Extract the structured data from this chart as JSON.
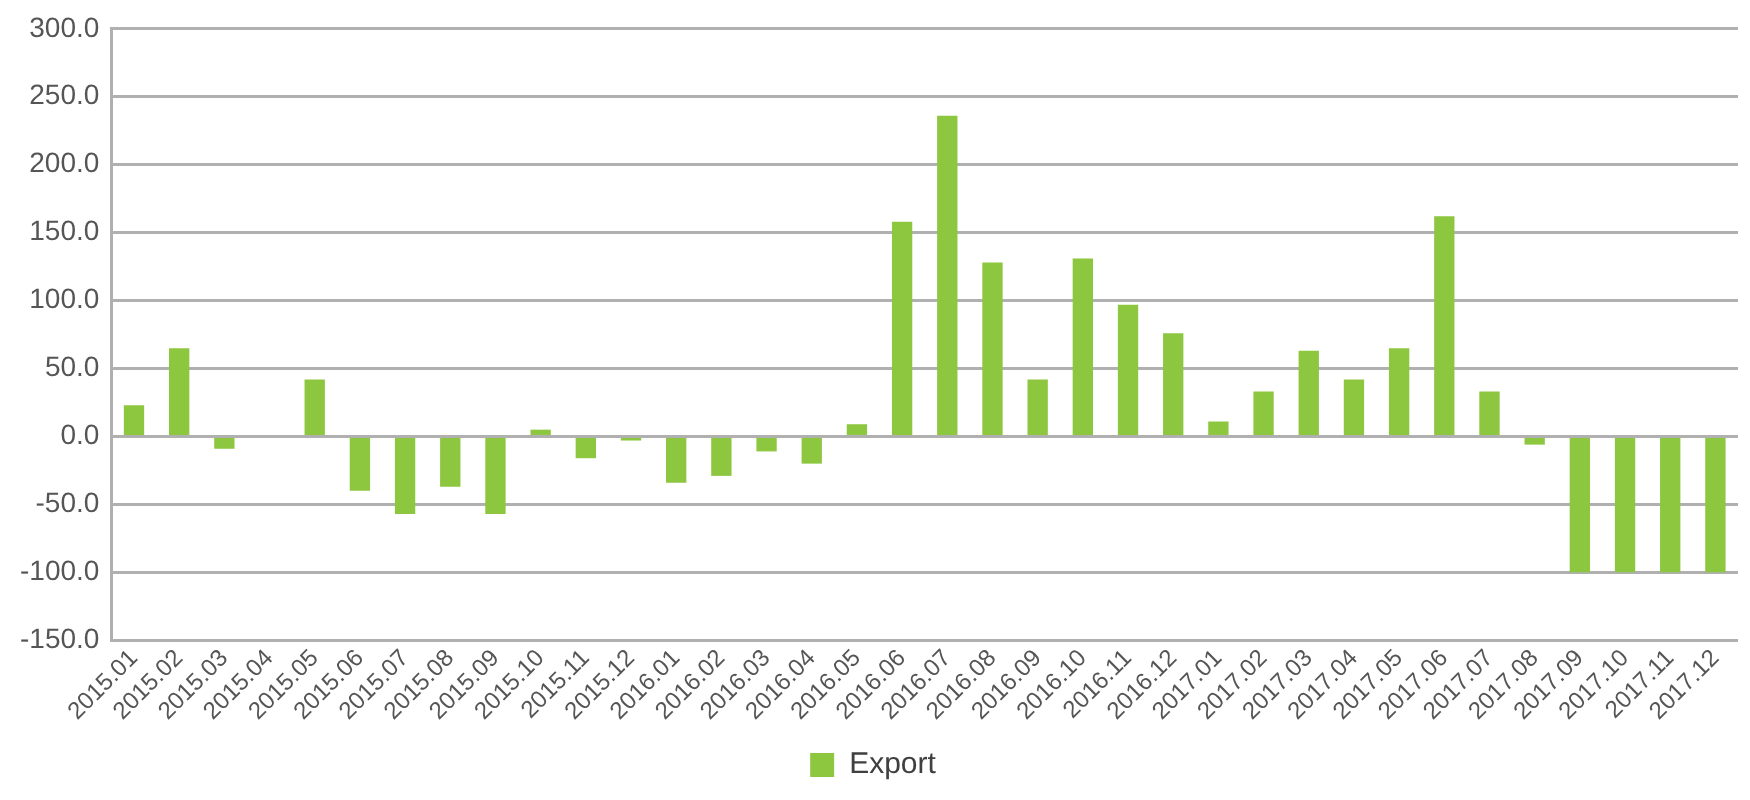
{
  "chart_data": {
    "type": "bar",
    "categories": [
      "2015.01",
      "2015.02",
      "2015.03",
      "2015.04",
      "2015.05",
      "2015.06",
      "2015.07",
      "2015.08",
      "2015.09",
      "2015.10",
      "2015.11",
      "2015.12",
      "2016.01",
      "2016.02",
      "2016.03",
      "2016.04",
      "2016.05",
      "2016.06",
      "2016.07",
      "2016.08",
      "2016.09",
      "2016.10",
      "2016.11",
      "2016.12",
      "2017.01",
      "2017.02",
      "2017.03",
      "2017.04",
      "2017.05",
      "2017.06",
      "2017.07",
      "2017.08",
      "2017.09",
      "2017.10",
      "2017.11",
      "2017.12"
    ],
    "series": [
      {
        "name": "Export",
        "color": "#8dc63f",
        "values": [
          23,
          65,
          -9,
          0,
          42,
          -40,
          -57,
          -37,
          -57,
          5,
          -16,
          -3,
          -34,
          -29,
          -11,
          -20,
          9,
          158,
          236,
          128,
          42,
          131,
          97,
          76,
          11,
          33,
          63,
          42,
          65,
          162,
          33,
          -6,
          -100,
          -100,
          -100,
          -100
        ]
      }
    ],
    "ylim": [
      -150,
      300
    ],
    "yticks": [
      {
        "value": -150,
        "label": "-150.0"
      },
      {
        "value": -100,
        "label": "-100.0"
      },
      {
        "value": -50,
        "label": "-50.0"
      },
      {
        "value": 0,
        "label": "0.0"
      },
      {
        "value": 50,
        "label": "50.0"
      },
      {
        "value": 100,
        "label": "100.0"
      },
      {
        "value": 150,
        "label": "150.0"
      },
      {
        "value": 200,
        "label": "200.0"
      },
      {
        "value": 250,
        "label": "250.0"
      },
      {
        "value": 300,
        "label": "300.0"
      }
    ],
    "grid": "y",
    "legend": "bottom"
  }
}
